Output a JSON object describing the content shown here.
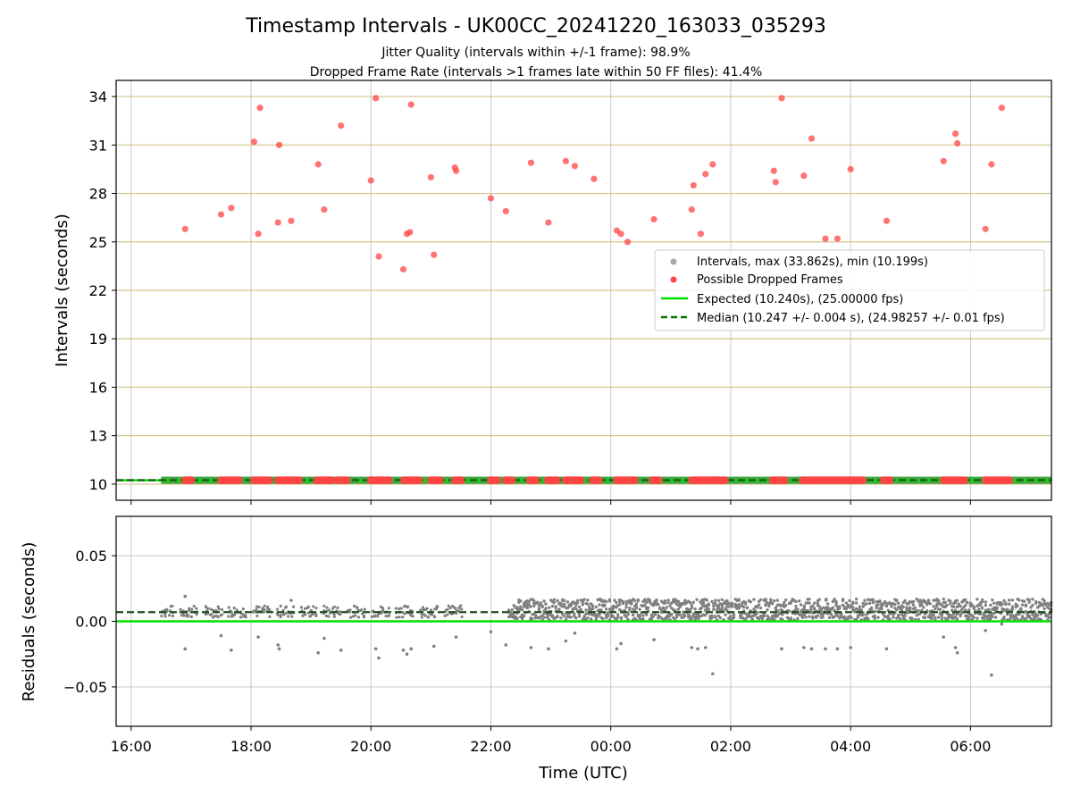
{
  "chart_data": [
    {
      "type": "scatter",
      "title": "Timestamp Intervals - UK00CC_20241220_163033_035293",
      "subtitle_lines": [
        "Jitter Quality (intervals within +/-1 frame): 98.9%",
        "Dropped Frame Rate (intervals >1 frames late within 50 FF files): 41.4%"
      ],
      "ylabel": "Intervals (seconds)",
      "ylim": [
        9.0,
        35.0
      ],
      "yticks": [
        10,
        13,
        16,
        19,
        22,
        25,
        28,
        31,
        34
      ],
      "ytick_labels": [
        "10",
        "13",
        "16",
        "19",
        "22",
        "25",
        "28",
        "31",
        "34"
      ],
      "xlim_hours": [
        15.75,
        31.35
      ],
      "grid": true,
      "legend_placement": "center-right",
      "legend": [
        {
          "label": "Intervals, max (33.862s), min (10.199s)",
          "kind": "marker",
          "color": "#a8a8a8"
        },
        {
          "label": "Possible Dropped Frames",
          "kind": "marker",
          "color": "#ff4444"
        },
        {
          "label": "Expected (10.240s), (25.00000 fps)",
          "kind": "line",
          "color": "#00e000"
        },
        {
          "label": "Median (10.247 +/- 0.004 s), (24.98257 +/- 0.01 fps)",
          "kind": "dashed",
          "color": "#007700"
        }
      ],
      "expected_value": 10.24,
      "median_value": 10.247,
      "intervals_base": {
        "value": 10.24,
        "x_start_hours": 16.5,
        "x_end_hours": 31.35
      },
      "dropped_frames": {
        "x_hours": [
          16.9,
          17.5,
          17.67,
          18.05,
          18.12,
          18.15,
          18.45,
          18.47,
          18.67,
          19.12,
          19.22,
          19.5,
          20.0,
          20.08,
          20.13,
          20.54,
          20.6,
          20.65,
          20.67,
          21.0,
          21.05,
          21.4,
          21.42,
          22.0,
          22.25,
          22.67,
          22.96,
          23.25,
          23.4,
          23.72,
          24.1,
          24.17,
          24.28,
          24.72,
          25.35,
          25.38,
          25.5,
          25.58,
          25.7,
          26.72,
          26.75,
          26.85,
          27.22,
          27.35,
          27.58,
          27.78,
          28.0,
          28.6,
          29.55,
          29.75,
          29.78,
          30.25,
          30.35,
          30.52
        ],
        "y_values": [
          25.8,
          26.7,
          27.1,
          31.2,
          25.5,
          33.3,
          26.2,
          31.0,
          26.3,
          29.8,
          27.0,
          32.2,
          28.8,
          33.9,
          24.1,
          23.3,
          25.5,
          25.6,
          33.5,
          29.0,
          24.2,
          29.6,
          29.4,
          27.7,
          26.9,
          29.9,
          26.2,
          30.0,
          29.7,
          28.9,
          25.7,
          25.5,
          25.0,
          26.4,
          27.0,
          28.5,
          25.5,
          29.2,
          29.8,
          29.4,
          28.7,
          33.9,
          29.1,
          31.4,
          25.2,
          25.2,
          29.5,
          26.3,
          30.0,
          31.7,
          31.1,
          25.8,
          29.8,
          33.3
        ],
        "base_cluster_x_hours": [
          16.9,
          16.95,
          17.0,
          17.5,
          17.55,
          17.6,
          17.65,
          17.7,
          17.75,
          17.8,
          18.05,
          18.1,
          18.15,
          18.2,
          18.25,
          18.3,
          18.45,
          18.5,
          18.55,
          18.6,
          18.65,
          18.7,
          18.75,
          18.8,
          19.1,
          19.15,
          19.2,
          19.25,
          19.3,
          19.35,
          19.45,
          19.5,
          19.55,
          19.6,
          20.0,
          20.05,
          20.1,
          20.15,
          20.2,
          20.25,
          20.3,
          20.55,
          20.6,
          20.65,
          20.7,
          20.75,
          20.8,
          21.0,
          21.05,
          21.1,
          21.15,
          21.4,
          21.45,
          21.5,
          22.0,
          22.05,
          22.1,
          22.25,
          22.3,
          22.35,
          22.65,
          22.7,
          22.75,
          22.95,
          23.0,
          23.05,
          23.1,
          23.25,
          23.3,
          23.35,
          23.4,
          23.45,
          23.5,
          23.7,
          23.75,
          23.8,
          24.1,
          24.15,
          24.2,
          24.25,
          24.3,
          24.35,
          24.4,
          24.7,
          24.75,
          24.8,
          25.35,
          25.4,
          25.45,
          25.5,
          25.55,
          25.6,
          25.65,
          25.7,
          25.75,
          25.8,
          25.85,
          25.9,
          26.7,
          26.75,
          26.8,
          26.85,
          26.9,
          27.2,
          27.25,
          27.3,
          27.35,
          27.4,
          27.45,
          27.5,
          27.55,
          27.6,
          27.65,
          27.7,
          27.75,
          27.8,
          27.85,
          27.9,
          27.95,
          28.0,
          28.05,
          28.1,
          28.15,
          28.2,
          28.55,
          28.6,
          28.65,
          29.55,
          29.6,
          29.65,
          29.7,
          29.75,
          29.8,
          29.85,
          29.9,
          30.25,
          30.3,
          30.35,
          30.4,
          30.45,
          30.5,
          30.55,
          30.6,
          30.65
        ],
        "color": "#ff4444"
      }
    },
    {
      "type": "scatter",
      "xlabel": "Time (UTC)",
      "ylabel": "Residuals (seconds)",
      "ylim": [
        -0.08,
        0.08
      ],
      "yticks": [
        -0.05,
        0.0,
        0.05
      ],
      "ytick_labels": [
        "−0.05",
        "0.00",
        "0.05"
      ],
      "xticks_hours": [
        16,
        18,
        20,
        22,
        24,
        26,
        28,
        30
      ],
      "xtick_labels": [
        "16:00",
        "18:00",
        "20:00",
        "22:00",
        "00:00",
        "02:00",
        "04:00",
        "06:00"
      ],
      "xlim_hours": [
        15.75,
        31.35
      ],
      "grid": true,
      "zero_line_color": "#00e000",
      "median_residual": 0.007,
      "point_color": "#808080",
      "sparse_segment": {
        "x_start_hours": 16.5,
        "x_end_hours": 21.6,
        "y_min": 0.003,
        "y_max": 0.012
      },
      "dense_segment": {
        "x_start_hours": 22.3,
        "x_end_hours": 31.35,
        "y_min": 0.001,
        "y_max": 0.017
      },
      "outliers": [
        {
          "x": 16.9,
          "y": 0.019
        },
        {
          "x": 16.9,
          "y": -0.021
        },
        {
          "x": 17.5,
          "y": -0.011
        },
        {
          "x": 17.67,
          "y": -0.022
        },
        {
          "x": 18.12,
          "y": -0.012
        },
        {
          "x": 18.45,
          "y": -0.018
        },
        {
          "x": 18.47,
          "y": -0.021
        },
        {
          "x": 18.67,
          "y": 0.016
        },
        {
          "x": 19.12,
          "y": -0.024
        },
        {
          "x": 19.22,
          "y": -0.013
        },
        {
          "x": 19.5,
          "y": -0.022
        },
        {
          "x": 20.08,
          "y": -0.021
        },
        {
          "x": 20.13,
          "y": -0.028
        },
        {
          "x": 20.54,
          "y": -0.022
        },
        {
          "x": 20.6,
          "y": -0.025
        },
        {
          "x": 20.67,
          "y": -0.021
        },
        {
          "x": 21.05,
          "y": -0.019
        },
        {
          "x": 21.42,
          "y": -0.012
        },
        {
          "x": 22.0,
          "y": -0.008
        },
        {
          "x": 22.25,
          "y": -0.018
        },
        {
          "x": 22.67,
          "y": -0.02
        },
        {
          "x": 22.96,
          "y": -0.021
        },
        {
          "x": 23.25,
          "y": -0.015
        },
        {
          "x": 23.4,
          "y": -0.009
        },
        {
          "x": 24.1,
          "y": -0.021
        },
        {
          "x": 24.17,
          "y": -0.017
        },
        {
          "x": 24.72,
          "y": -0.014
        },
        {
          "x": 25.35,
          "y": -0.02
        },
        {
          "x": 25.45,
          "y": -0.021
        },
        {
          "x": 25.58,
          "y": -0.02
        },
        {
          "x": 25.7,
          "y": -0.04
        },
        {
          "x": 26.85,
          "y": -0.021
        },
        {
          "x": 27.22,
          "y": -0.02
        },
        {
          "x": 27.35,
          "y": -0.021
        },
        {
          "x": 27.58,
          "y": -0.021
        },
        {
          "x": 27.78,
          "y": -0.021
        },
        {
          "x": 28.0,
          "y": -0.02
        },
        {
          "x": 28.6,
          "y": -0.021
        },
        {
          "x": 29.55,
          "y": -0.012
        },
        {
          "x": 29.75,
          "y": -0.02
        },
        {
          "x": 29.78,
          "y": -0.024
        },
        {
          "x": 30.25,
          "y": -0.007
        },
        {
          "x": 30.35,
          "y": -0.041
        },
        {
          "x": 30.52,
          "y": -0.002
        }
      ]
    }
  ]
}
